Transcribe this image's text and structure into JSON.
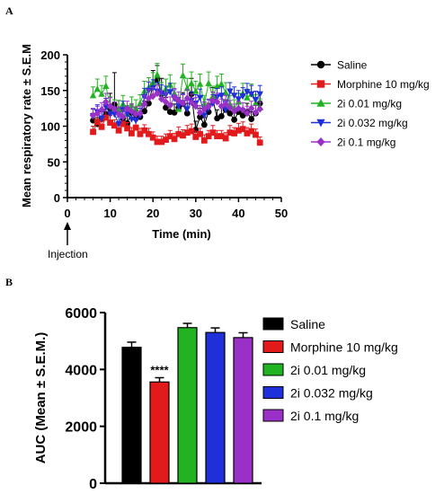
{
  "chart_data": [
    {
      "panel": "A",
      "type": "line",
      "xlabel": "Time (min)",
      "ylabel": "Mean respiratory rate ± S.E.M",
      "xlim": [
        0,
        50
      ],
      "ylim": [
        0,
        200
      ],
      "xticks": [
        "0",
        "10",
        "20",
        "30",
        "40",
        "50"
      ],
      "yticks": [
        "0",
        "50",
        "100",
        "150",
        "200"
      ],
      "annotation": "Injection",
      "annotation_x": 0,
      "legend_position": "right",
      "x": [
        6,
        7,
        8,
        9,
        10,
        11,
        12,
        13,
        14,
        15,
        16,
        17,
        18,
        19,
        20,
        21,
        22,
        23,
        24,
        25,
        26,
        27,
        28,
        29,
        30,
        31,
        32,
        33,
        34,
        35,
        36,
        37,
        38,
        39,
        40,
        41,
        42,
        43,
        44,
        45
      ],
      "series": [
        {
          "name": "Saline",
          "color": "#000000",
          "marker": "circle",
          "values": [
            108,
            103,
            110,
            117,
            124,
            130,
            122,
            111,
            104,
            119,
            111,
            113,
            121,
            132,
            158,
            165,
            145,
            126,
            120,
            119,
            126,
            131,
            118,
            145,
            95,
            113,
            102,
            120,
            138,
            111,
            114,
            123,
            118,
            109,
            120,
            115,
            120,
            110,
            118,
            132
          ],
          "errors": [
            10,
            9,
            10,
            14,
            22,
            45,
            14,
            10,
            10,
            12,
            10,
            12,
            14,
            18,
            20,
            20,
            22,
            14,
            12,
            12,
            14,
            16,
            14,
            22,
            12,
            12,
            10,
            12,
            16,
            12,
            12,
            14,
            12,
            10,
            12,
            10,
            12,
            10,
            12,
            14
          ]
        },
        {
          "name": "Morphine 10 mg/kg",
          "color": "#e31a1c",
          "marker": "square",
          "values": [
            92,
            106,
            99,
            112,
            105,
            101,
            94,
            103,
            97,
            90,
            98,
            89,
            94,
            89,
            84,
            78,
            78,
            81,
            86,
            82,
            89,
            87,
            91,
            93,
            85,
            89,
            80,
            86,
            91,
            86,
            86,
            83,
            91,
            90,
            94,
            96,
            90,
            93,
            88,
            77
          ],
          "errors": [
            8,
            10,
            8,
            12,
            10,
            8,
            8,
            10,
            8,
            8,
            10,
            8,
            8,
            8,
            8,
            8,
            8,
            8,
            8,
            8,
            10,
            8,
            10,
            10,
            8,
            8,
            8,
            8,
            10,
            8,
            8,
            8,
            10,
            8,
            10,
            10,
            8,
            10,
            8,
            8
          ]
        },
        {
          "name": "2i 0.01 mg/kg",
          "color": "#22b322",
          "marker": "triangle",
          "values": [
            143,
            152,
            145,
            156,
            129,
            125,
            124,
            131,
            117,
            129,
            125,
            132,
            149,
            154,
            161,
            172,
            147,
            152,
            158,
            146,
            124,
            171,
            153,
            160,
            149,
            159,
            131,
            160,
            142,
            156,
            159,
            147,
            131,
            125,
            134,
            146,
            140,
            145,
            132,
            126
          ],
          "errors": [
            12,
            14,
            12,
            14,
            12,
            12,
            12,
            12,
            12,
            12,
            12,
            12,
            14,
            14,
            14,
            16,
            14,
            14,
            14,
            14,
            12,
            16,
            14,
            16,
            14,
            14,
            12,
            16,
            14,
            14,
            14,
            14,
            12,
            12,
            12,
            14,
            12,
            14,
            12,
            12
          ]
        },
        {
          "name": "2i 0.032 mg/kg",
          "color": "#1f2fd9",
          "marker": "triangle-down",
          "values": [
            114,
            120,
            111,
            127,
            117,
            117,
            103,
            123,
            117,
            110,
            108,
            115,
            141,
            150,
            153,
            149,
            146,
            144,
            148,
            139,
            128,
            133,
            124,
            136,
            132,
            140,
            115,
            125,
            132,
            141,
            143,
            123,
            149,
            143,
            138,
            142,
            148,
            145,
            137,
            145
          ],
          "errors": [
            10,
            10,
            10,
            12,
            10,
            10,
            10,
            12,
            10,
            10,
            10,
            10,
            12,
            12,
            12,
            12,
            12,
            12,
            12,
            12,
            12,
            12,
            12,
            12,
            12,
            12,
            10,
            12,
            12,
            12,
            12,
            12,
            12,
            12,
            12,
            12,
            12,
            12,
            12,
            12
          ]
        },
        {
          "name": "2i 0.1 mg/kg",
          "color": "#9b30c8",
          "marker": "diamond",
          "values": [
            115,
            118,
            123,
            134,
            128,
            124,
            117,
            113,
            125,
            121,
            117,
            118,
            131,
            139,
            142,
            146,
            138,
            134,
            129,
            141,
            136,
            132,
            139,
            133,
            128,
            119,
            124,
            128,
            136,
            134,
            128,
            131,
            126,
            121,
            125,
            123,
            118,
            125,
            119,
            124
          ],
          "errors": [
            10,
            10,
            10,
            12,
            12,
            10,
            10,
            10,
            10,
            10,
            10,
            10,
            12,
            12,
            12,
            12,
            12,
            12,
            12,
            12,
            12,
            12,
            12,
            12,
            12,
            10,
            10,
            10,
            12,
            12,
            10,
            12,
            10,
            10,
            10,
            10,
            10,
            10,
            10,
            10
          ]
        }
      ]
    },
    {
      "panel": "B",
      "type": "bar",
      "ylabel": "AUC (Mean ± S.E.M.)",
      "ylim": [
        0,
        6000
      ],
      "yticks": [
        "0",
        "2000",
        "4000",
        "6000"
      ],
      "categories": [
        "Saline",
        "Morphine 10 mg/kg",
        "2i 0.01 mg/kg",
        "2i 0.032 mg/kg",
        "2i 0.1 mg/kg"
      ],
      "values": [
        4780,
        3560,
        5470,
        5300,
        5120
      ],
      "errors": [
        180,
        150,
        150,
        160,
        170
      ],
      "colors": [
        "#000000",
        "#e31a1c",
        "#22b322",
        "#1f2fd9",
        "#9b30c8"
      ],
      "significance": {
        "category": "Morphine 10 mg/kg",
        "label": "****"
      },
      "legend_position": "right"
    }
  ]
}
